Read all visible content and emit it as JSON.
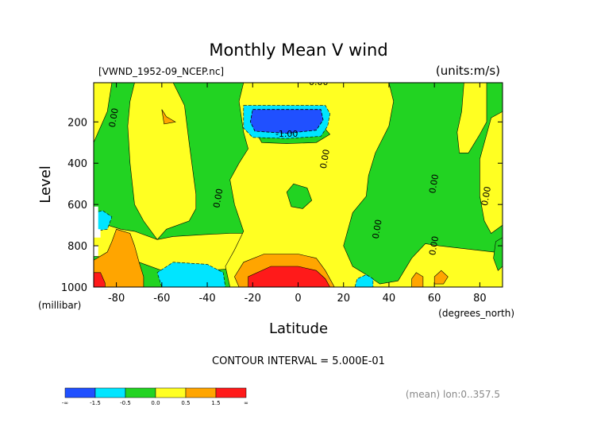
{
  "chart_data": {
    "type": "contour",
    "title": "Monthly Mean V wind",
    "file_label": "[VWND_1952-09_NCEP.nc]",
    "units_label": "(units:m/s)",
    "xlabel": "Latitude",
    "x_units": "(degrees_north)",
    "ylabel": "Level",
    "y_units": "(millibar)",
    "xlim": [
      -90,
      90
    ],
    "ylim": [
      1000,
      10
    ],
    "x_ticks": [
      -80,
      -60,
      -40,
      -20,
      0,
      20,
      40,
      60,
      80
    ],
    "y_ticks": [
      200,
      400,
      600,
      800,
      1000
    ],
    "contour_interval_text": "CONTOUR INTERVAL = 5.000E-01",
    "mean_note": "(mean) lon:0..357.5",
    "levels": [
      -1.5,
      -0.5,
      0.0,
      0.5,
      1.5
    ],
    "colorbar": {
      "ticks": [
        "-∞",
        "-1.5",
        "-0.5",
        "0.0",
        "0.5",
        "1.5",
        "∞"
      ],
      "colors": [
        "#2050ff",
        "#00e5ff",
        "#22d322",
        "#ffff22",
        "#ffa500",
        "#ff1a1a"
      ]
    },
    "contour_labels": [
      {
        "text": "0.00",
        "lat": -81,
        "lev": 180
      },
      {
        "text": "0.00",
        "lat": 9,
        "lev": 10
      },
      {
        "text": "-1.00",
        "lat": -5,
        "lev": 260
      },
      {
        "text": "0.00",
        "lat": 12,
        "lev": 380
      },
      {
        "text": "0.00",
        "lat": -35,
        "lev": 570
      },
      {
        "text": "0.00",
        "lat": 35,
        "lev": 720
      },
      {
        "text": "0.00",
        "lat": 60,
        "lev": 500
      },
      {
        "text": "0.00",
        "lat": 60,
        "lev": 800
      },
      {
        "text": "0.00",
        "lat": 83,
        "lev": 560
      }
    ],
    "regions": [
      {
        "level_class": "green",
        "points": [
          [
            -90,
            10
          ],
          [
            90,
            10
          ],
          [
            90,
            1000
          ],
          [
            -90,
            1000
          ]
        ]
      },
      {
        "level_class": "yellow",
        "points": [
          [
            -90,
            10
          ],
          [
            -82,
            10
          ],
          [
            -84,
            150
          ],
          [
            -88,
            250
          ],
          [
            -90,
            300
          ]
        ]
      },
      {
        "level_class": "yellow",
        "points": [
          [
            -72,
            10
          ],
          [
            -55,
            10
          ],
          [
            -50,
            120
          ],
          [
            -48,
            300
          ],
          [
            -45,
            550
          ],
          [
            -45,
            620
          ],
          [
            -48,
            680
          ],
          [
            -58,
            720
          ],
          [
            -62,
            770
          ],
          [
            -68,
            680
          ],
          [
            -72,
            600
          ],
          [
            -74,
            400
          ],
          [
            -75,
            220
          ],
          [
            -74,
            100
          ]
        ]
      },
      {
        "level_class": "yellow",
        "points": [
          [
            -90,
            720
          ],
          [
            -84,
            700
          ],
          [
            -78,
            720
          ],
          [
            -72,
            730
          ],
          [
            -62,
            770
          ],
          [
            -55,
            755
          ],
          [
            -40,
            745
          ],
          [
            -30,
            740
          ],
          [
            -23,
            740
          ],
          [
            -20,
            770
          ],
          [
            -22,
            800
          ],
          [
            -18,
            850
          ],
          [
            -15,
            900
          ],
          [
            -40,
            920
          ],
          [
            -60,
            920
          ],
          [
            -70,
            880
          ],
          [
            -82,
            860
          ],
          [
            -90,
            850
          ]
        ]
      },
      {
        "level_class": "yellow",
        "points": [
          [
            -24,
            10
          ],
          [
            40,
            10
          ],
          [
            42,
            100
          ],
          [
            40,
            220
          ],
          [
            34,
            350
          ],
          [
            31,
            460
          ],
          [
            30,
            560
          ],
          [
            24,
            640
          ],
          [
            20,
            800
          ],
          [
            24,
            900
          ],
          [
            30,
            940
          ],
          [
            36,
            985
          ],
          [
            44,
            970
          ],
          [
            50,
            860
          ],
          [
            56,
            790
          ],
          [
            62,
            800
          ],
          [
            70,
            810
          ],
          [
            78,
            820
          ],
          [
            86,
            830
          ],
          [
            90,
            830
          ],
          [
            90,
            1000
          ],
          [
            -30,
            1000
          ],
          [
            -32,
            900
          ],
          [
            -28,
            820
          ],
          [
            -24,
            730
          ],
          [
            -28,
            600
          ],
          [
            -30,
            480
          ],
          [
            -26,
            400
          ],
          [
            -22,
            330
          ],
          [
            -24,
            250
          ],
          [
            -26,
            100
          ]
        ]
      },
      {
        "level_class": "yellow",
        "points": [
          [
            73,
            10
          ],
          [
            83,
            10
          ],
          [
            83,
            200
          ],
          [
            80,
            260
          ],
          [
            75,
            350
          ],
          [
            71,
            350
          ],
          [
            70,
            250
          ],
          [
            72,
            150
          ]
        ]
      },
      {
        "level_class": "yellow",
        "points": [
          [
            85,
            180
          ],
          [
            90,
            150
          ],
          [
            90,
            700
          ],
          [
            85,
            740
          ],
          [
            82,
            680
          ],
          [
            80,
            560
          ],
          [
            80,
            380
          ],
          [
            83,
            260
          ]
        ]
      },
      {
        "level_class": "green",
        "points": [
          [
            -18,
            210
          ],
          [
            -10,
            195
          ],
          [
            -2,
            190
          ],
          [
            4,
            200
          ],
          [
            10,
            210
          ],
          [
            14,
            260
          ],
          [
            8,
            300
          ],
          [
            -5,
            305
          ],
          [
            -16,
            300
          ],
          [
            -18,
            260
          ]
        ]
      },
      {
        "level_class": "green",
        "points": [
          [
            -5,
            540
          ],
          [
            -2,
            500
          ],
          [
            4,
            520
          ],
          [
            6,
            580
          ],
          [
            2,
            620
          ],
          [
            -3,
            610
          ]
        ]
      },
      {
        "level_class": "cyan",
        "points": [
          [
            -24,
            120
          ],
          [
            12,
            120
          ],
          [
            14,
            160
          ],
          [
            13,
            220
          ],
          [
            10,
            270
          ],
          [
            -5,
            280
          ],
          [
            -20,
            275
          ],
          [
            -24,
            230
          ]
        ]
      },
      {
        "level_class": "blue",
        "points": [
          [
            -20,
            140
          ],
          [
            10,
            140
          ],
          [
            11,
            190
          ],
          [
            8,
            240
          ],
          [
            -5,
            255
          ],
          [
            -19,
            245
          ],
          [
            -21,
            200
          ]
        ]
      },
      {
        "level_class": "orange",
        "points": [
          [
            -90,
            870
          ],
          [
            -84,
            830
          ],
          [
            -82,
            780
          ],
          [
            -80,
            720
          ],
          [
            -74,
            740
          ],
          [
            -72,
            800
          ],
          [
            -70,
            880
          ],
          [
            -68,
            950
          ],
          [
            -68,
            1000
          ],
          [
            -90,
            1000
          ]
        ]
      },
      {
        "level_class": "red",
        "points": [
          [
            -90,
            930
          ],
          [
            -87,
            930
          ],
          [
            -85,
            980
          ],
          [
            -85,
            1000
          ],
          [
            -90,
            1000
          ]
        ]
      },
      {
        "level_class": "orange",
        "points": [
          [
            -26,
            1000
          ],
          [
            -28,
            950
          ],
          [
            -24,
            880
          ],
          [
            -15,
            840
          ],
          [
            0,
            840
          ],
          [
            8,
            860
          ],
          [
            12,
            920
          ],
          [
            16,
            1000
          ]
        ]
      },
      {
        "level_class": "red",
        "points": [
          [
            -22,
            1000
          ],
          [
            -22,
            950
          ],
          [
            -12,
            900
          ],
          [
            0,
            900
          ],
          [
            8,
            920
          ],
          [
            12,
            960
          ],
          [
            14,
            1000
          ]
        ]
      },
      {
        "level_class": "cyan",
        "points": [
          [
            -60,
            1000
          ],
          [
            -62,
            930
          ],
          [
            -55,
            880
          ],
          [
            -40,
            890
          ],
          [
            -33,
            930
          ],
          [
            -32,
            1000
          ]
        ]
      },
      {
        "level_class": "cyan",
        "points": [
          [
            25,
            1000
          ],
          [
            26,
            960
          ],
          [
            30,
            940
          ],
          [
            33,
            960
          ],
          [
            33,
            1000
          ]
        ]
      },
      {
        "level_class": "orange",
        "points": [
          [
            -60,
            140
          ],
          [
            -58,
            175
          ],
          [
            -54,
            200
          ],
          [
            -59,
            210
          ]
        ]
      },
      {
        "level_class": "orange",
        "points": [
          [
            50,
            960
          ],
          [
            52,
            930
          ],
          [
            55,
            950
          ],
          [
            55,
            1000
          ],
          [
            50,
            1000
          ]
        ]
      },
      {
        "level_class": "orange",
        "points": [
          [
            60,
            950
          ],
          [
            63,
            920
          ],
          [
            66,
            950
          ],
          [
            64,
            985
          ],
          [
            60,
            985
          ]
        ]
      },
      {
        "level_class": "green",
        "points": [
          [
            87,
            780
          ],
          [
            90,
            760
          ],
          [
            90,
            900
          ],
          [
            88,
            920
          ],
          [
            86,
            860
          ]
        ]
      },
      {
        "level_class": "cyan",
        "points": [
          [
            -90,
            640
          ],
          [
            -86,
            630
          ],
          [
            -82,
            660
          ],
          [
            -84,
            720
          ],
          [
            -90,
            730
          ]
        ]
      },
      {
        "level_class": "white",
        "points": [
          [
            -90,
            610
          ],
          [
            -88,
            610
          ],
          [
            -88,
            720
          ],
          [
            -87,
            720
          ],
          [
            -87,
            760
          ],
          [
            -90,
            760
          ]
        ]
      },
      {
        "level_class": "white",
        "points": [
          [
            -90,
            800
          ],
          [
            -88,
            800
          ],
          [
            -88,
            850
          ],
          [
            -90,
            850
          ]
        ]
      }
    ]
  }
}
